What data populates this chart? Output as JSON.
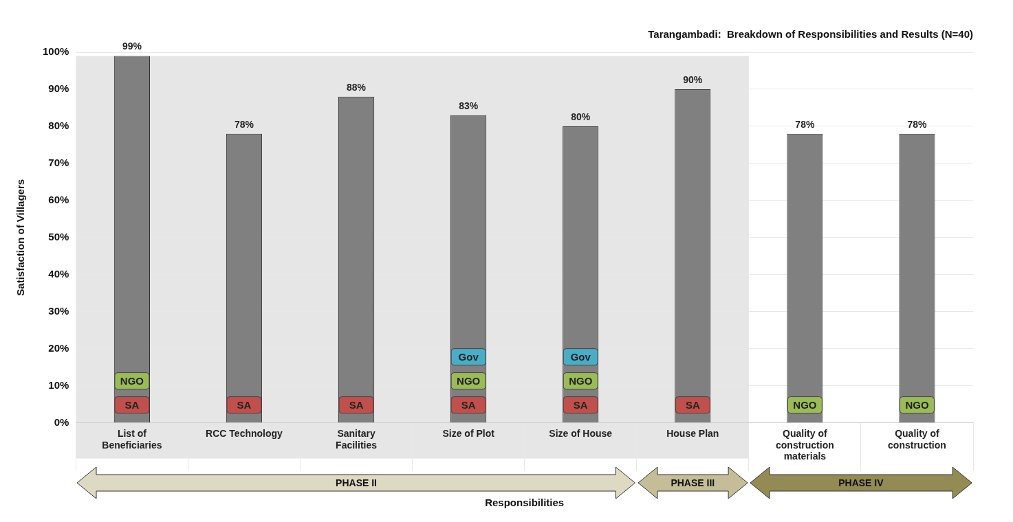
{
  "chart_data": {
    "type": "bar",
    "title": "Tarangambadi:  Breakdown of Responsibilities and Results (N=40)",
    "xlabel": "Responsibilities",
    "ylabel": "Satisfaction of Villagers",
    "categories": [
      "List of Beneficiaries",
      "RCC Technology",
      "Sanitary Facilities",
      "Size of Plot",
      "Size of House",
      "House Plan",
      "Quality of construction materials",
      "Quality of construction"
    ],
    "values": [
      99,
      78,
      88,
      83,
      80,
      90,
      78,
      78
    ],
    "value_labels": [
      "99%",
      "78%",
      "88%",
      "83%",
      "80%",
      "90%",
      "78%",
      "78%"
    ],
    "color": "#808080",
    "ylim": [
      0,
      100
    ],
    "yticks": [
      {
        "value": 0,
        "label": "0%"
      },
      {
        "value": 10,
        "label": "10%"
      },
      {
        "value": 20,
        "label": "20%"
      },
      {
        "value": 30,
        "label": "30%"
      },
      {
        "value": 40,
        "label": "40%"
      },
      {
        "value": 50,
        "label": "50%"
      },
      {
        "value": 60,
        "label": "60%"
      },
      {
        "value": 70,
        "label": "70%"
      },
      {
        "value": 80,
        "label": "80%"
      },
      {
        "value": 90,
        "label": "90%"
      },
      {
        "value": 100,
        "label": "100%"
      }
    ],
    "grid": true,
    "bands": [
      {
        "axis": "x",
        "from": "List of Beneficiaries",
        "to": "House Plan",
        "color": "#e6e6e6"
      }
    ],
    "annotations": [
      "SA",
      "NGO",
      "SA",
      "SA",
      "SA",
      "NGO",
      "Gov",
      "SA",
      "NGO",
      "Gov",
      "SA",
      "NGO",
      "NGO",
      "PHASE II",
      "PHASE III",
      "PHASE IV"
    ]
  }
}
